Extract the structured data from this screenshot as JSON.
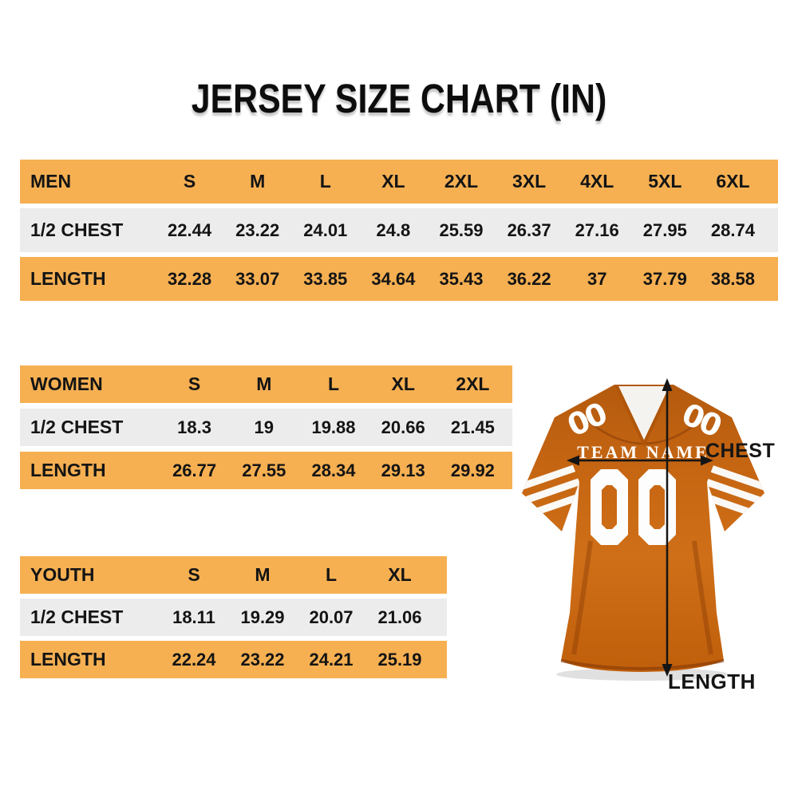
{
  "title": "JERSEY SIZE CHART (IN)",
  "chart_data": [
    {
      "type": "table",
      "name": "MEN",
      "columns": [
        "MEN",
        "S",
        "M",
        "L",
        "XL",
        "2XL",
        "3XL",
        "4XL",
        "5XL",
        "6XL"
      ],
      "rows": [
        [
          "1/2 CHEST",
          "22.44",
          "23.22",
          "24.01",
          "24.8",
          "25.59",
          "26.37",
          "27.16",
          "27.95",
          "28.74"
        ],
        [
          "LENGTH",
          "32.28",
          "33.07",
          "33.85",
          "34.64",
          "35.43",
          "36.22",
          "37",
          "37.79",
          "38.58"
        ]
      ]
    },
    {
      "type": "table",
      "name": "WOMEN",
      "columns": [
        "WOMEN",
        "S",
        "M",
        "L",
        "XL",
        "2XL"
      ],
      "rows": [
        [
          "1/2 CHEST",
          "18.3",
          "19",
          "19.88",
          "20.66",
          "21.45"
        ],
        [
          "LENGTH",
          "26.77",
          "27.55",
          "28.34",
          "29.13",
          "29.92"
        ]
      ]
    },
    {
      "type": "table",
      "name": "YOUTH",
      "columns": [
        "YOUTH",
        "S",
        "M",
        "L",
        "XL"
      ],
      "rows": [
        [
          "1/2 CHEST",
          "18.11",
          "19.29",
          "20.07",
          "21.06"
        ],
        [
          "LENGTH",
          "22.24",
          "23.22",
          "24.21",
          "25.19"
        ]
      ]
    }
  ],
  "jersey": {
    "team_name": "TEAM NAME",
    "number": "00",
    "shoulder_number": "00",
    "chest_label": "CHEST",
    "length_label": "LENGTH"
  },
  "colors": {
    "band_orange": "#F6B052",
    "band_gray": "#ECECEC",
    "text_dark": "#141414",
    "jersey_orange": "#C8661A",
    "arrow_black": "#151515"
  }
}
